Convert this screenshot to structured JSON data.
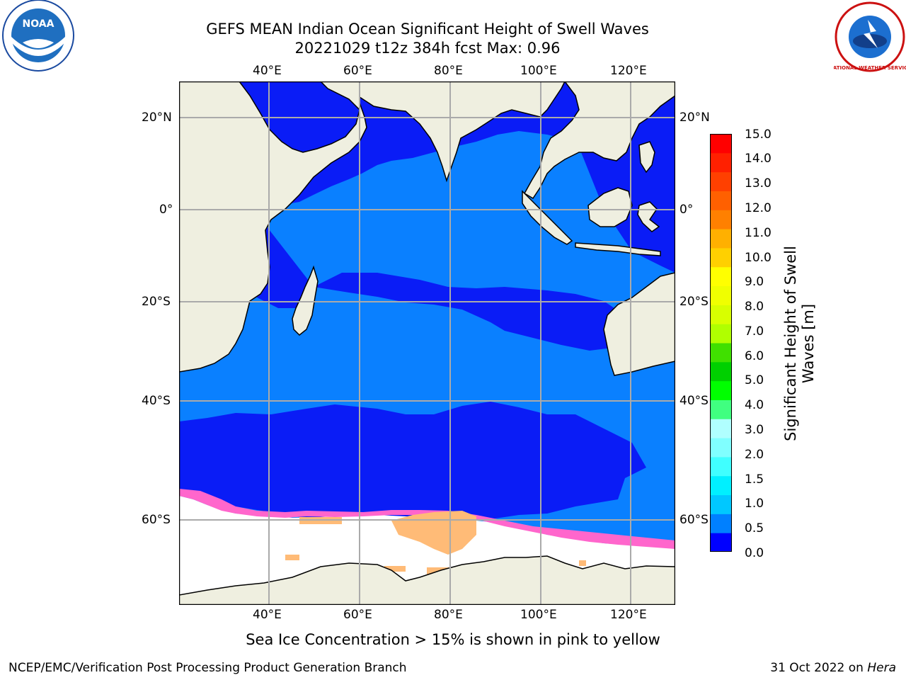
{
  "title_line1": "GEFS MEAN Indian Ocean Significant Height of Swell Waves",
  "title_line2": "20221029 t12z 384h fcst   Max: 0.96",
  "logo_left_text": "NOAA",
  "logo_right_text": "NATIONAL WEATHER SERVICE",
  "lon_labels": [
    "40°E",
    "60°E",
    "80°E",
    "100°E",
    "120°E"
  ],
  "lat_labels": [
    "20°N",
    "0°",
    "20°S",
    "40°S",
    "60°S"
  ],
  "colorbar": {
    "label_line1": "Significant Height of Swell",
    "label_line2": "Waves [m]",
    "ticks": [
      "15.0",
      "14.0",
      "13.0",
      "12.0",
      "11.0",
      "10.0",
      "9.0",
      "8.0",
      "7.0",
      "6.0",
      "5.0",
      "4.0",
      "3.0",
      "2.0",
      "1.5",
      "1.0",
      "0.5",
      "0.0"
    ],
    "colors_bottom_to_top": [
      "#0000ff",
      "#0080ff",
      "#00c8ff",
      "#00f0ff",
      "#40ffff",
      "#80ffff",
      "#b0ffff",
      "#40ff80",
      "#00ff00",
      "#00d000",
      "#40e000",
      "#b0ff00",
      "#d8ff00",
      "#f0ff00",
      "#ffff00",
      "#ffd000",
      "#ffb000",
      "#ff8000",
      "#ff6000",
      "#ff4000",
      "#ff2000",
      "#ff0000"
    ]
  },
  "map_colors": {
    "land": "#efefe0",
    "deep_blue": "#0a1cf6",
    "mid_blue": "#0a80ff",
    "ice_white": "#ffffff",
    "ice_pink": "#ff66cc",
    "ice_orange": "#ffbb77",
    "grid": "#aaaaaa"
  },
  "caption": "Sea Ice Concentration > 15% is shown in pink to yellow",
  "footer_left": "NCEP/EMC/Verification Post Processing Product Generation Branch",
  "footer_right_prefix": "31 Oct 2022 on ",
  "footer_right_italic": "Hera"
}
